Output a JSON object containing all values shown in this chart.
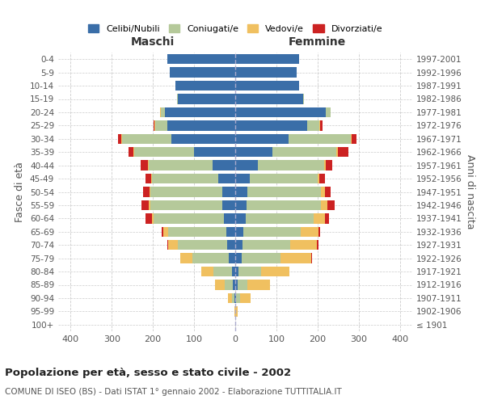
{
  "age_groups": [
    "100+",
    "95-99",
    "90-94",
    "85-89",
    "80-84",
    "75-79",
    "70-74",
    "65-69",
    "60-64",
    "55-59",
    "50-54",
    "45-49",
    "40-44",
    "35-39",
    "30-34",
    "25-29",
    "20-24",
    "15-19",
    "10-14",
    "5-9",
    "0-4"
  ],
  "birth_years": [
    "≤ 1901",
    "1902-1906",
    "1907-1911",
    "1912-1916",
    "1917-1921",
    "1922-1926",
    "1927-1931",
    "1932-1936",
    "1937-1941",
    "1942-1946",
    "1947-1951",
    "1952-1956",
    "1957-1961",
    "1962-1966",
    "1967-1971",
    "1972-1976",
    "1977-1981",
    "1982-1986",
    "1987-1991",
    "1992-1996",
    "1997-2001"
  ],
  "maschi": {
    "celibi": [
      0,
      0,
      2,
      5,
      8,
      15,
      20,
      22,
      28,
      32,
      32,
      42,
      55,
      100,
      155,
      165,
      170,
      140,
      145,
      160,
      165
    ],
    "coniugati": [
      0,
      0,
      5,
      20,
      45,
      90,
      120,
      140,
      170,
      175,
      175,
      160,
      155,
      145,
      120,
      30,
      10,
      2,
      0,
      0,
      0
    ],
    "vedovi": [
      0,
      2,
      10,
      25,
      30,
      28,
      22,
      12,
      5,
      3,
      2,
      2,
      2,
      2,
      2,
      2,
      2,
      0,
      0,
      0,
      0
    ],
    "divorziati": [
      0,
      0,
      0,
      0,
      0,
      0,
      3,
      5,
      15,
      18,
      14,
      14,
      18,
      12,
      8,
      2,
      0,
      0,
      0,
      0,
      0
    ]
  },
  "femmine": {
    "nubili": [
      0,
      0,
      2,
      5,
      8,
      15,
      18,
      20,
      25,
      28,
      30,
      35,
      55,
      90,
      130,
      175,
      220,
      165,
      155,
      150,
      155
    ],
    "coniugate": [
      0,
      0,
      10,
      25,
      55,
      95,
      115,
      140,
      165,
      180,
      178,
      165,
      160,
      155,
      150,
      30,
      12,
      2,
      0,
      0,
      0
    ],
    "vedove": [
      0,
      5,
      25,
      55,
      68,
      75,
      65,
      42,
      28,
      15,
      10,
      5,
      5,
      5,
      2,
      2,
      0,
      0,
      0,
      0,
      0
    ],
    "divorziate": [
      0,
      0,
      0,
      0,
      0,
      2,
      5,
      5,
      10,
      18,
      14,
      12,
      15,
      25,
      12,
      5,
      0,
      0,
      0,
      0,
      0
    ]
  },
  "colors": {
    "celibi": "#3a6ea8",
    "coniugati": "#b5c99a",
    "vedovi": "#f0c060",
    "divorziati": "#cc2222"
  },
  "title": "Popolazione per età, sesso e stato civile - 2002",
  "subtitle": "COMUNE DI ISEO (BS) - Dati ISTAT 1° gennaio 2002 - Elaborazione TUTTITALIA.IT",
  "ylabel_left": "Fasce di età",
  "ylabel_right": "Anni di nascita",
  "xlim": 430,
  "maschi_label": "Maschi",
  "femmine_label": "Femmine",
  "legend_labels": [
    "Celibi/Nubili",
    "Coniugati/e",
    "Vedovi/e",
    "Divorziati/e"
  ],
  "background_color": "#ffffff"
}
